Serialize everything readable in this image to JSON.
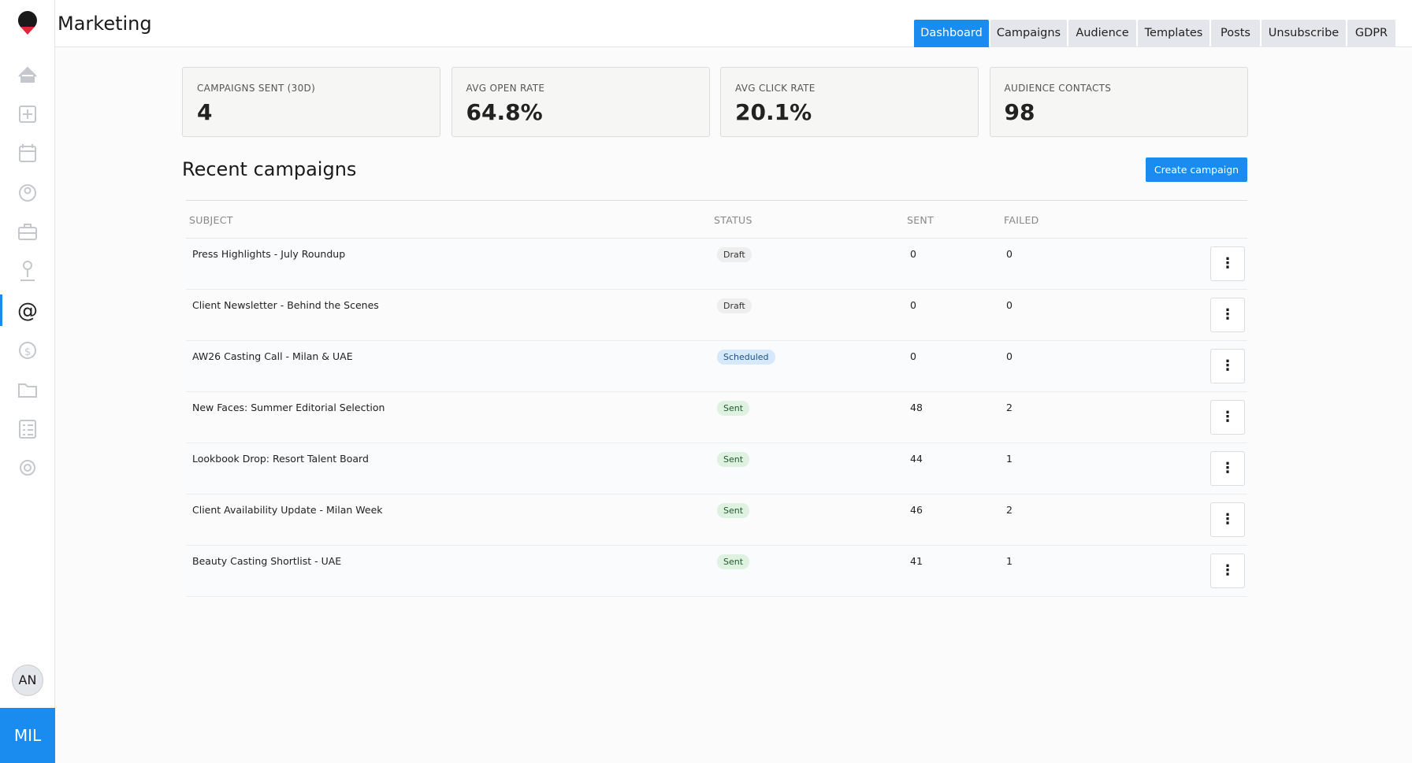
{
  "header": {
    "title": "Marketing",
    "tabs": [
      "Dashboard",
      "Campaigns",
      "Audience",
      "Templates",
      "Posts",
      "Unsubscribe",
      "GDPR"
    ]
  },
  "stats": [
    {
      "label": "CAMPAIGNS SENT (30D)",
      "value": 4
    },
    {
      "label": "AVG OPEN RATE",
      "value": "64.8%"
    },
    {
      "label": "AVG CLICK RATE",
      "value": "20.1%"
    },
    {
      "label": "AUDIENCE CONTACTS",
      "value": 98
    }
  ],
  "section": {
    "title": "Recent campaigns",
    "button": "Create campaign"
  },
  "table": {
    "columns": [
      "SUBJECT",
      "STATUS",
      "SENT",
      "FAILED"
    ],
    "rows": [
      [
        "Press Highlights - July Roundup",
        "Draft",
        0,
        0
      ],
      [
        "Client Newsletter - Behind the Scenes",
        "Draft",
        0,
        0
      ],
      [
        "AW26 Casting Call - Milan & UAE",
        "Scheduled",
        0,
        0
      ],
      [
        "New Faces: Summer Editorial Selection",
        "Sent",
        48,
        2
      ],
      [
        "Lookbook Drop: Resort Talent Board",
        "Sent",
        44,
        1
      ],
      [
        "Client Availability Update - Milan Week",
        "Sent",
        46,
        2
      ],
      [
        "Beauty Casting Shortlist - UAE",
        "Sent",
        41,
        1
      ]
    ],
    "status_colors": {
      "Draft": [
        "#eeeeee",
        "#333333"
      ],
      "Scheduled": [
        "#d6e8fb",
        "#1f4f80"
      ],
      "Sent": [
        "#dff2e2",
        "#1f5a2a"
      ]
    }
  },
  "sidebar": {
    "user": "AN",
    "workspace": "MIL"
  }
}
